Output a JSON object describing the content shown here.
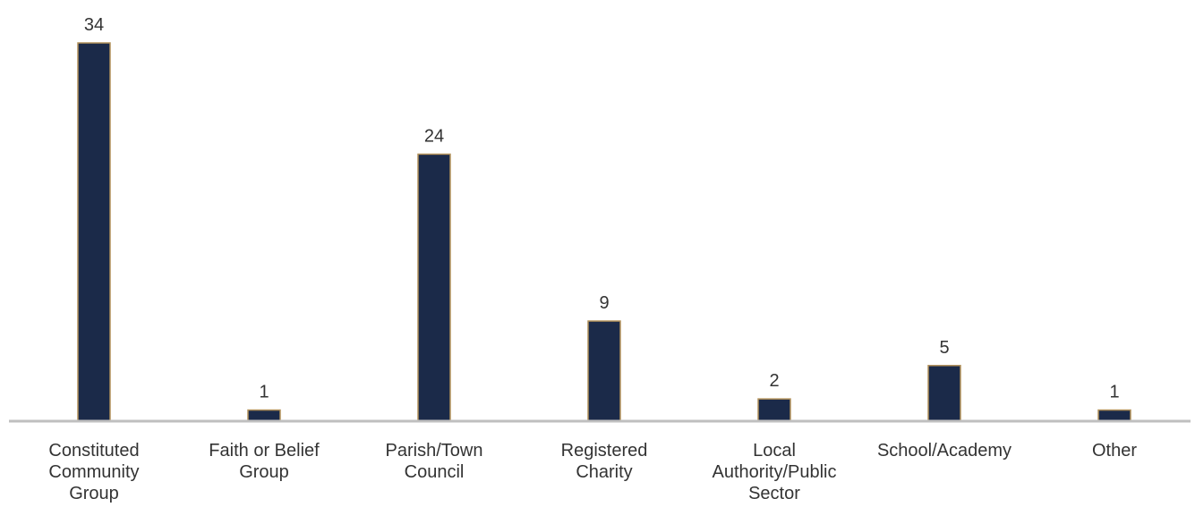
{
  "chart_data": {
    "type": "bar",
    "title": "",
    "xlabel": "",
    "ylabel": "",
    "categories": [
      "Constituted Community Group",
      "Faith or Belief Group",
      "Parish/Town Council",
      "Registered Charity",
      "Local Authority/Public Sector",
      "School/Academy",
      "Other"
    ],
    "category_lines": [
      [
        "Constituted",
        "Community",
        "Group"
      ],
      [
        "Faith or Belief",
        "Group"
      ],
      [
        "Parish/Town",
        "Council"
      ],
      [
        "Registered",
        "Charity"
      ],
      [
        "Local",
        "Authority/Public",
        "Sector"
      ],
      [
        "School/Academy"
      ],
      [
        "Other"
      ]
    ],
    "values": [
      34,
      1,
      24,
      9,
      2,
      5,
      1
    ],
    "ylim": [
      0,
      34
    ],
    "grid": false,
    "legend": "none",
    "colors": {
      "bar_fill": "#1b2a49",
      "bar_stroke": "#b3925b",
      "axis": "#bfbfbf",
      "text": "#333333"
    }
  }
}
